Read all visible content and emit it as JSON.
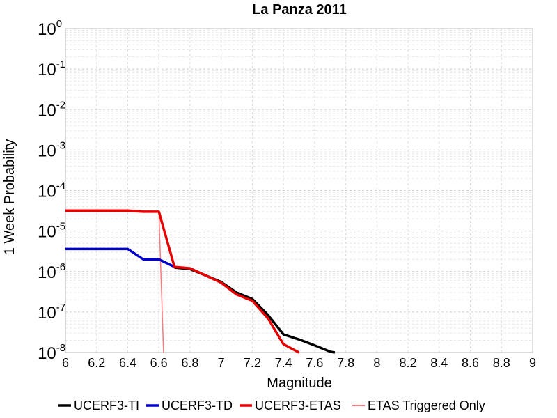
{
  "chart_data": {
    "type": "line",
    "title": "La Panza 2011",
    "xlabel": "Magnitude",
    "ylabel": "1 Week Probability",
    "xlim": [
      6,
      9
    ],
    "ylim": [
      1e-08,
      1
    ],
    "yscale": "log",
    "grid": true,
    "legend_position": "bottom",
    "x_ticks": [
      "6",
      "6.2",
      "6.4",
      "6.6",
      "6.8",
      "7",
      "7.2",
      "7.4",
      "7.6",
      "7.8",
      "8",
      "8.2",
      "8.4",
      "8.6",
      "8.8",
      "9"
    ],
    "y_ticks": [
      {
        "base": "10",
        "exp": "0"
      },
      {
        "base": "10",
        "exp": "-1"
      },
      {
        "base": "10",
        "exp": "-2"
      },
      {
        "base": "10",
        "exp": "-3"
      },
      {
        "base": "10",
        "exp": "-4"
      },
      {
        "base": "10",
        "exp": "-5"
      },
      {
        "base": "10",
        "exp": "-6"
      },
      {
        "base": "10",
        "exp": "-7"
      },
      {
        "base": "10",
        "exp": "-8"
      }
    ],
    "series": [
      {
        "name": "UCERF3-TI",
        "color": "#000000",
        "x": [
          6.7,
          6.8,
          6.9,
          7.0,
          7.1,
          7.2,
          7.3,
          7.4,
          7.5,
          7.6,
          7.7,
          7.73
        ],
        "y": [
          1.25e-06,
          1.15e-06,
          8e-07,
          5.5e-07,
          3e-07,
          2.1e-07,
          8.5e-08,
          2.8e-08,
          2.1e-08,
          1.5e-08,
          1.05e-08,
          1e-08
        ]
      },
      {
        "name": "UCERF3-TD",
        "color": "#0000cc",
        "x": [
          6.0,
          6.1,
          6.2,
          6.3,
          6.4,
          6.5,
          6.6,
          6.7
        ],
        "y": [
          3.6e-06,
          3.6e-06,
          3.6e-06,
          3.6e-06,
          3.6e-06,
          2e-06,
          2e-06,
          1.3e-06
        ]
      },
      {
        "name": "UCERF3-ETAS",
        "color": "#e60000",
        "x": [
          6.0,
          6.1,
          6.2,
          6.3,
          6.4,
          6.5,
          6.6,
          6.7,
          6.8,
          6.9,
          7.0,
          7.1,
          7.2,
          7.3,
          7.4,
          7.5
        ],
        "y": [
          3.2e-05,
          3.2e-05,
          3.2e-05,
          3.2e-05,
          3.2e-05,
          3e-05,
          3e-05,
          1.3e-06,
          1.2e-06,
          8e-07,
          5.3e-07,
          2.7e-07,
          1.9e-07,
          7e-08,
          1.6e-08,
          1e-08
        ]
      },
      {
        "name": "ETAS Triggered Only",
        "color": "#ff7a7a",
        "x": [
          6.0,
          6.1,
          6.2,
          6.3,
          6.4,
          6.5,
          6.6,
          6.63
        ],
        "y": [
          3e-05,
          3e-05,
          3e-05,
          3e-05,
          3e-05,
          2.9e-05,
          2.9e-05,
          1e-08
        ]
      }
    ]
  }
}
